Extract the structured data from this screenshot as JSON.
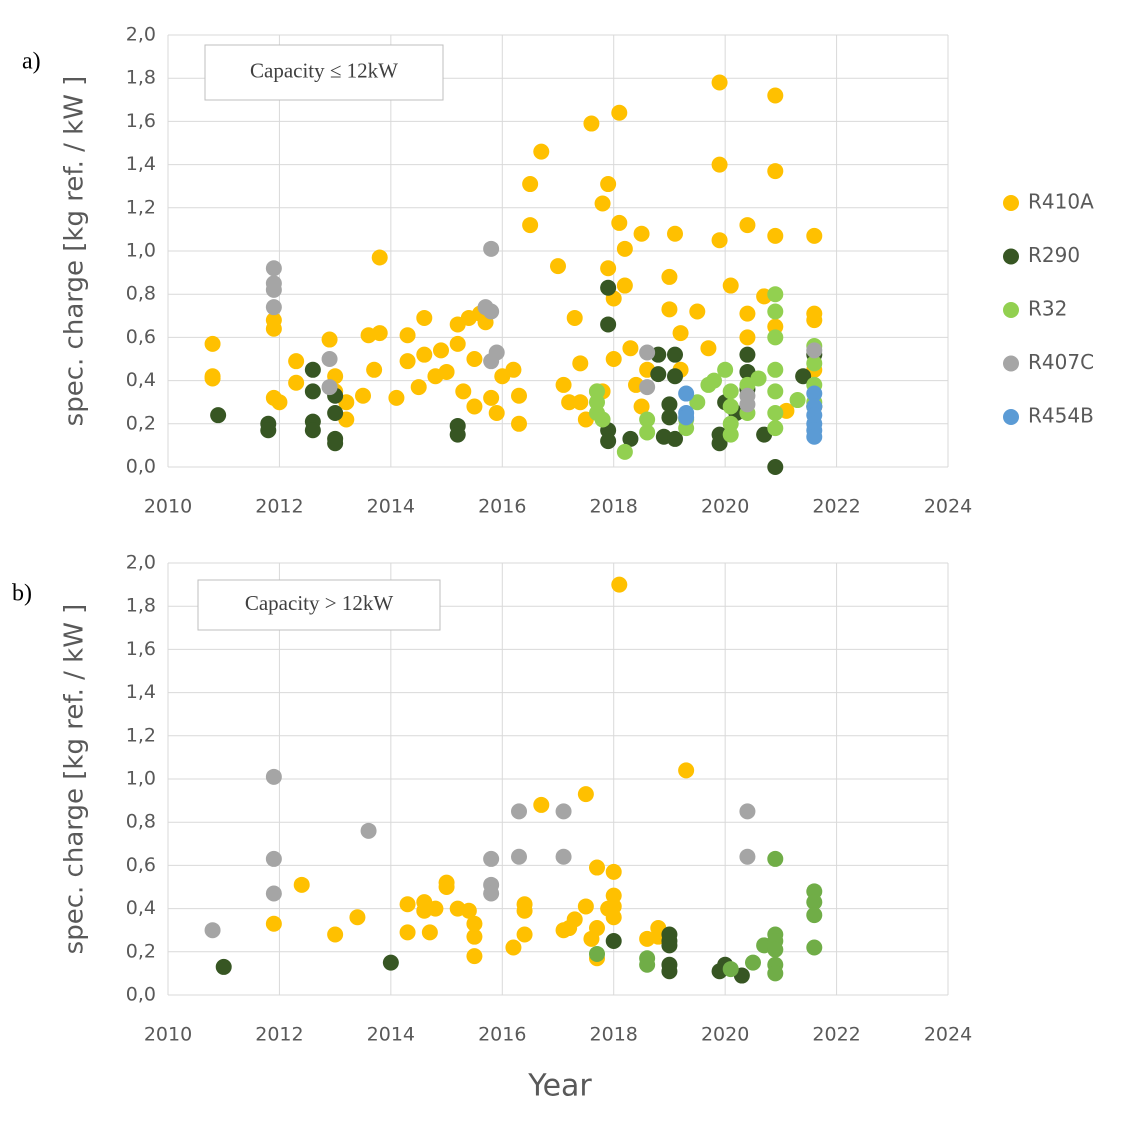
{
  "chart_data": [
    {
      "type": "scatter",
      "panel_label": "a)",
      "annotation": "Capacity ≤ 12kW",
      "y_label": "spec. charge [kg ref. / kW ]",
      "xlim": [
        2010,
        2024
      ],
      "xticks": [
        2010,
        2012,
        2014,
        2016,
        2018,
        2020,
        2022,
        2024
      ],
      "ylim": [
        0,
        2
      ],
      "yticks": [
        {
          "value": 0,
          "label": "0,0"
        },
        {
          "value": 0.2,
          "label": "0,2"
        },
        {
          "value": 0.4,
          "label": "0,4"
        },
        {
          "value": 0.6,
          "label": "0,6"
        },
        {
          "value": 0.8,
          "label": "0,8"
        },
        {
          "value": 1.0,
          "label": "1,0"
        },
        {
          "value": 1.2,
          "label": "1,2"
        },
        {
          "value": 1.4,
          "label": "1,4"
        },
        {
          "value": 1.6,
          "label": "1,6"
        },
        {
          "value": 1.8,
          "label": "1,8"
        },
        {
          "value": 2.0,
          "label": "2,0"
        }
      ],
      "grid": true,
      "legend": "right",
      "series": [
        {
          "name": "R410A",
          "color": "#FFC000",
          "x": [
            2010.8,
            2010.8,
            2010.8,
            2011.9,
            2011.9,
            2011.9,
            2012,
            2012.3,
            2012.3,
            2012.9,
            2013,
            2013,
            2013.2,
            2013.2,
            2013.5,
            2013.6,
            2013.7,
            2013.8,
            2013.8,
            2014.1,
            2014.3,
            2014.3,
            2014.5,
            2014.6,
            2014.6,
            2014.8,
            2014.9,
            2015,
            2015.2,
            2015.2,
            2015.3,
            2015.4,
            2015.5,
            2015.5,
            2015.6,
            2015.7,
            2015.8,
            2015.9,
            2016,
            2016.2,
            2016.3,
            2016.3,
            2016.5,
            2016.5,
            2016.7,
            2017,
            2017.1,
            2017.2,
            2017.3,
            2017.4,
            2017.5,
            2017.6,
            2017.7,
            2017.8,
            2017.9,
            2017.9,
            2018,
            2018,
            2018.1,
            2018.1,
            2018.2,
            2018.2,
            2018.3,
            2018.4,
            2018.5,
            2018.6,
            2019,
            2019.1,
            2019,
            2019.2,
            2019.5,
            2019.7,
            2019.9,
            2019.9,
            2019.9,
            2020.1,
            2020.4,
            2020.4,
            2020.4,
            2020.7,
            2020.9,
            2020.9,
            2020.9,
            2020.9,
            2021.1,
            2021.6,
            2021.6,
            2021.6,
            2021.6,
            2017.4,
            2017.8,
            2018.5,
            2019.2
          ],
          "y": [
            0.57,
            0.42,
            0.41,
            0.68,
            0.64,
            0.32,
            0.3,
            0.49,
            0.39,
            0.59,
            0.42,
            0.35,
            0.3,
            0.22,
            0.33,
            0.61,
            0.45,
            0.62,
            0.97,
            0.32,
            0.61,
            0.49,
            0.37,
            0.69,
            0.52,
            0.42,
            0.54,
            0.44,
            0.66,
            0.57,
            0.35,
            0.69,
            0.28,
            0.5,
            0.71,
            0.67,
            0.32,
            0.25,
            0.42,
            0.45,
            0.33,
            0.2,
            1.31,
            1.12,
            1.46,
            0.93,
            0.38,
            0.3,
            0.69,
            0.48,
            0.22,
            1.59,
            0.35,
            1.22,
            1.31,
            0.92,
            0.78,
            0.5,
            1.64,
            1.13,
            1.01,
            0.84,
            0.55,
            0.38,
            1.08,
            0.45,
            0.88,
            1.08,
            0.73,
            0.62,
            0.72,
            0.55,
            1.78,
            1.4,
            1.05,
            0.84,
            1.12,
            0.71,
            0.6,
            0.79,
            1.72,
            1.37,
            1.07,
            0.65,
            0.26,
            1.07,
            0.71,
            0.68,
            0.45,
            0.3,
            0.35,
            0.28,
            0.45
          ]
        },
        {
          "name": "R290",
          "color": "#375623",
          "x": [
            2010.9,
            2011.8,
            2011.8,
            2012.6,
            2012.6,
            2012.6,
            2012.6,
            2013,
            2013,
            2013,
            2013,
            2015.2,
            2015.2,
            2017.9,
            2017.9,
            2017.9,
            2017.9,
            2018.3,
            2018.8,
            2018.8,
            2018.9,
            2019,
            2019,
            2019.1,
            2019.1,
            2019.1,
            2019.9,
            2019.9,
            2020,
            2020.2,
            2020.4,
            2020.4,
            2020.4,
            2020.7,
            2020.9,
            2021.4,
            2021.6,
            2021.6
          ],
          "y": [
            0.24,
            0.2,
            0.17,
            0.45,
            0.21,
            0.17,
            0.35,
            0.33,
            0.25,
            0.13,
            0.11,
            0.19,
            0.15,
            0.83,
            0.66,
            0.17,
            0.12,
            0.13,
            0.52,
            0.43,
            0.14,
            0.29,
            0.23,
            0.52,
            0.42,
            0.13,
            0.15,
            0.11,
            0.3,
            0.25,
            0.52,
            0.44,
            0.36,
            0.15,
            0.0,
            0.42,
            0.52,
            0.28
          ]
        },
        {
          "name": "R32",
          "color": "#92D050",
          "x": [
            2017.7,
            2017.7,
            2017.7,
            2017.8,
            2018.2,
            2018.6,
            2018.6,
            2019.3,
            2019.3,
            2019.5,
            2019.7,
            2019.8,
            2020,
            2020.1,
            2020.1,
            2020.1,
            2020.1,
            2020.4,
            2020.4,
            2020.6,
            2020.9,
            2020.9,
            2020.9,
            2020.9,
            2020.9,
            2020.9,
            2020.9,
            2021.3,
            2021.6,
            2021.6,
            2021.6,
            2021.6
          ],
          "y": [
            0.35,
            0.3,
            0.25,
            0.22,
            0.07,
            0.22,
            0.16,
            0.22,
            0.18,
            0.3,
            0.38,
            0.4,
            0.45,
            0.35,
            0.28,
            0.2,
            0.15,
            0.38,
            0.25,
            0.41,
            0.8,
            0.72,
            0.6,
            0.45,
            0.35,
            0.25,
            0.18,
            0.31,
            0.56,
            0.48,
            0.38,
            0.3
          ]
        },
        {
          "name": "R407C",
          "color": "#A5A5A5",
          "x": [
            2011.9,
            2011.9,
            2011.9,
            2011.9,
            2012.9,
            2012.9,
            2015.7,
            2015.8,
            2015.8,
            2015.8,
            2015.9,
            2018.6,
            2018.6,
            2020.4,
            2020.4,
            2021.6
          ],
          "y": [
            0.92,
            0.85,
            0.82,
            0.74,
            0.5,
            0.37,
            0.74,
            1.01,
            0.72,
            0.49,
            0.53,
            0.53,
            0.37,
            0.33,
            0.29,
            0.54
          ]
        },
        {
          "name": "R454B",
          "color": "#5B9BD5",
          "x": [
            2019.3,
            2019.3,
            2019.3,
            2021.6,
            2021.6,
            2021.6,
            2021.6,
            2021.6,
            2021.6
          ],
          "y": [
            0.34,
            0.25,
            0.23,
            0.34,
            0.28,
            0.24,
            0.2,
            0.17,
            0.14
          ]
        }
      ]
    },
    {
      "type": "scatter",
      "panel_label": "b)",
      "annotation": "Capacity > 12kW",
      "y_label": "spec. charge [kg ref. / kW ]",
      "x_label": "Year",
      "xlim": [
        2010,
        2024
      ],
      "xticks": [
        2010,
        2012,
        2014,
        2016,
        2018,
        2020,
        2022,
        2024
      ],
      "ylim": [
        0,
        2
      ],
      "yticks": [
        {
          "value": 0,
          "label": "0,0"
        },
        {
          "value": 0.2,
          "label": "0,2"
        },
        {
          "value": 0.4,
          "label": "0,4"
        },
        {
          "value": 0.6,
          "label": "0,6"
        },
        {
          "value": 0.8,
          "label": "0,8"
        },
        {
          "value": 1.0,
          "label": "1,0"
        },
        {
          "value": 1.2,
          "label": "1,2"
        },
        {
          "value": 1.4,
          "label": "1,4"
        },
        {
          "value": 1.6,
          "label": "1,6"
        },
        {
          "value": 1.8,
          "label": "1,8"
        },
        {
          "value": 2.0,
          "label": "2,0"
        }
      ],
      "grid": true,
      "series": [
        {
          "color": "#FFC000",
          "x": [
            2011.9,
            2012.4,
            2013,
            2013.4,
            2014.3,
            2014.3,
            2014.6,
            2014.6,
            2014.7,
            2014.8,
            2015,
            2015,
            2015.2,
            2015.4,
            2015.5,
            2015.5,
            2015.5,
            2016.2,
            2016.4,
            2016.4,
            2016.4,
            2016.7,
            2017.1,
            2017.2,
            2017.3,
            2017.5,
            2017.5,
            2017.6,
            2017.7,
            2017.7,
            2017.7,
            2017.9,
            2018,
            2018,
            2018,
            2018,
            2018.1,
            2018.6,
            2018.8,
            2018.8,
            2019.3
          ],
          "y": [
            0.33,
            0.51,
            0.28,
            0.36,
            0.29,
            0.42,
            0.43,
            0.39,
            0.29,
            0.4,
            0.52,
            0.5,
            0.4,
            0.39,
            0.33,
            0.27,
            0.18,
            0.22,
            0.42,
            0.39,
            0.28,
            0.88,
            0.3,
            0.31,
            0.35,
            0.93,
            0.41,
            0.26,
            0.31,
            0.17,
            0.59,
            0.4,
            0.57,
            0.46,
            0.41,
            0.36,
            1.9,
            0.26,
            0.31,
            0.27,
            1.04
          ]
        },
        {
          "color": "#375623",
          "x": [
            2011,
            2014,
            2018,
            2019,
            2019,
            2019,
            2019,
            2019,
            2019.9,
            2020,
            2020.3
          ],
          "y": [
            0.13,
            0.15,
            0.25,
            0.28,
            0.25,
            0.23,
            0.14,
            0.11,
            0.11,
            0.14,
            0.09
          ]
        },
        {
          "color": "#70AD47",
          "x": [
            2017.7,
            2018.6,
            2018.6,
            2020.1,
            2020.5,
            2020.7,
            2020.9,
            2020.9,
            2020.9,
            2020.9,
            2020.9,
            2020.9,
            2021.6,
            2021.6,
            2021.6,
            2021.6
          ],
          "y": [
            0.19,
            0.17,
            0.14,
            0.12,
            0.15,
            0.23,
            0.63,
            0.28,
            0.25,
            0.21,
            0.14,
            0.1,
            0.48,
            0.43,
            0.37,
            0.22
          ]
        },
        {
          "color": "#A5A5A5",
          "x": [
            2010.8,
            2011.9,
            2011.9,
            2011.9,
            2013.6,
            2015.8,
            2015.8,
            2015.8,
            2016.3,
            2016.3,
            2017.1,
            2017.1,
            2020.4,
            2020.4
          ],
          "y": [
            0.3,
            1.01,
            0.63,
            0.47,
            0.76,
            0.63,
            0.51,
            0.47,
            0.85,
            0.64,
            0.85,
            0.64,
            0.85,
            0.64
          ]
        }
      ]
    }
  ]
}
